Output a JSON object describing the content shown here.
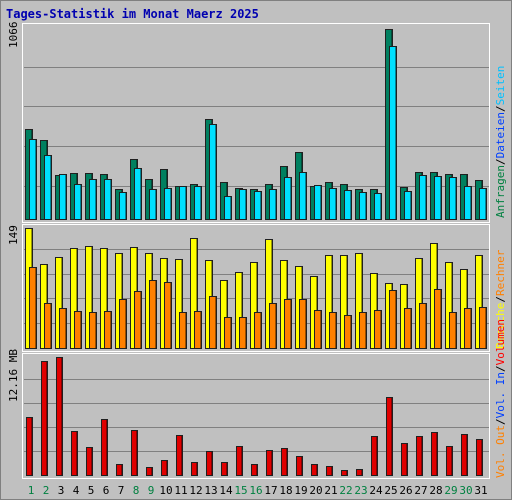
{
  "title": "Tages-Statistik im Monat Maerz 2025",
  "panels": {
    "top": {
      "ymax_label": "1066",
      "ymax": 1066,
      "legend": [
        {
          "text": "Anfragen",
          "color": "#008040"
        },
        {
          "text": "/",
          "color": "#000000"
        },
        {
          "text": "Dateien",
          "color": "#0040ff"
        },
        {
          "text": "/",
          "color": "#000000"
        },
        {
          "text": "Seiten",
          "color": "#00c0ff"
        }
      ]
    },
    "mid": {
      "ymax_label": "149",
      "ymax": 149,
      "legend": [
        {
          "text": "Besuche",
          "color": "#ffff00"
        },
        {
          "text": "/",
          "color": "#000000"
        },
        {
          "text": "Rechner",
          "color": "#ff8000"
        }
      ]
    },
    "bot": {
      "ymax_label": "12.16 MB",
      "ymax": 12.16,
      "legend": [
        {
          "text": "Vol. Out",
          "color": "#ff8000"
        },
        {
          "text": "/",
          "color": "#000000"
        },
        {
          "text": "Vol. In",
          "color": "#0040ff"
        },
        {
          "text": "/",
          "color": "#000000"
        },
        {
          "text": "Volumen",
          "color": "#ff0000"
        }
      ]
    }
  },
  "colors": {
    "anfragen": "#008060",
    "dateien": "#0040ff",
    "seiten": "#00e0ff",
    "besuche": "#ffff00",
    "rechner": "#ff8000",
    "volumen": "#e00000",
    "title": "#0000b0",
    "weekday": "#000000",
    "weekend": "#008040"
  },
  "chart_data": [
    {
      "type": "bar",
      "categories": [
        "1",
        "2",
        "3",
        "4",
        "5",
        "6",
        "7",
        "8",
        "9",
        "10",
        "11",
        "12",
        "13",
        "14",
        "15",
        "16",
        "17",
        "18",
        "19",
        "20",
        "21",
        "22",
        "23",
        "24",
        "25",
        "26",
        "27",
        "28",
        "29",
        "30",
        "31"
      ],
      "weekend_days": [
        "1",
        "2",
        "8",
        "9",
        "15",
        "16",
        "22",
        "23",
        "29",
        "30"
      ],
      "ylim": [
        0,
        1066
      ],
      "series": [
        {
          "name": "Anfragen",
          "values": [
            510,
            447,
            253,
            261,
            260,
            259,
            175,
            342,
            227,
            283,
            190,
            201,
            563,
            214,
            180,
            175,
            201,
            304,
            378,
            192,
            213,
            200,
            175,
            175,
            1066,
            186,
            269,
            266,
            257,
            257,
            225
          ]
        },
        {
          "name": "Dateien",
          "values": [
            0,
            0,
            0,
            0,
            0,
            0,
            0,
            0,
            0,
            0,
            0,
            0,
            0,
            0,
            0,
            0,
            0,
            0,
            0,
            0,
            0,
            0,
            0,
            0,
            0,
            0,
            0,
            0,
            0,
            0,
            0
          ]
        },
        {
          "name": "Seiten",
          "values": [
            450,
            363,
            258,
            203,
            231,
            231,
            159,
            289,
            174,
            180,
            188,
            190,
            537,
            135,
            171,
            162,
            173,
            239,
            270,
            194,
            177,
            170,
            155,
            152,
            970,
            162,
            249,
            246,
            240,
            190,
            181
          ]
        }
      ]
    },
    {
      "type": "bar",
      "categories": [
        "1",
        "2",
        "3",
        "4",
        "5",
        "6",
        "7",
        "8",
        "9",
        "10",
        "11",
        "12",
        "13",
        "14",
        "15",
        "16",
        "17",
        "18",
        "19",
        "20",
        "21",
        "22",
        "23",
        "24",
        "25",
        "26",
        "27",
        "28",
        "29",
        "30",
        "31"
      ],
      "ylim": [
        0,
        149
      ],
      "series": [
        {
          "name": "Besuche",
          "values": [
            149,
            105,
            113,
            124,
            127,
            124,
            118,
            126,
            118,
            112,
            111,
            137,
            110,
            85,
            95,
            107,
            136,
            109,
            102,
            90,
            116,
            116,
            118,
            94,
            81,
            80,
            112,
            130,
            107,
            98,
            116
          ]
        },
        {
          "name": "Rechner",
          "values": [
            101,
            57,
            51,
            47,
            45,
            47,
            61,
            72,
            85,
            83,
            45,
            47,
            65,
            40,
            40,
            45,
            57,
            61,
            62,
            48,
            45,
            42,
            46,
            48,
            73,
            50,
            57,
            74,
            45,
            51,
            52
          ]
        }
      ]
    },
    {
      "type": "bar",
      "categories": [
        "1",
        "2",
        "3",
        "4",
        "5",
        "6",
        "7",
        "8",
        "9",
        "10",
        "11",
        "12",
        "13",
        "14",
        "15",
        "16",
        "17",
        "18",
        "19",
        "20",
        "21",
        "22",
        "23",
        "24",
        "25",
        "26",
        "27",
        "28",
        "29",
        "30",
        "31"
      ],
      "ylim": [
        0,
        12.16
      ],
      "series": [
        {
          "name": "Volumen",
          "values": [
            5.9,
            11.6,
            11.95,
            4.55,
            2.9,
            5.7,
            1.25,
            4.65,
            0.9,
            1.6,
            4.1,
            1.45,
            2.5,
            1.45,
            3.0,
            1.25,
            2.6,
            2.85,
            2.05,
            1.25,
            1.0,
            0.65,
            0.75,
            4.0,
            7.95,
            3.35,
            4.0,
            4.45,
            3.05,
            4.25,
            3.7
          ]
        },
        {
          "name": "Vol. In",
          "values": [
            0,
            0,
            0,
            0,
            0,
            0,
            0,
            0,
            0,
            0,
            0,
            0,
            0,
            0,
            0,
            0,
            0,
            0,
            0,
            0,
            0,
            0,
            0,
            0,
            0,
            0,
            0,
            0,
            0,
            0,
            0
          ]
        },
        {
          "name": "Vol. Out",
          "values": [
            0,
            0,
            0,
            0,
            0,
            0,
            0,
            0,
            0,
            0,
            0,
            0,
            0,
            0,
            0,
            0,
            0,
            0,
            0,
            0,
            0,
            0,
            0,
            0,
            0,
            0,
            0,
            0,
            0,
            0,
            0
          ]
        }
      ]
    }
  ]
}
